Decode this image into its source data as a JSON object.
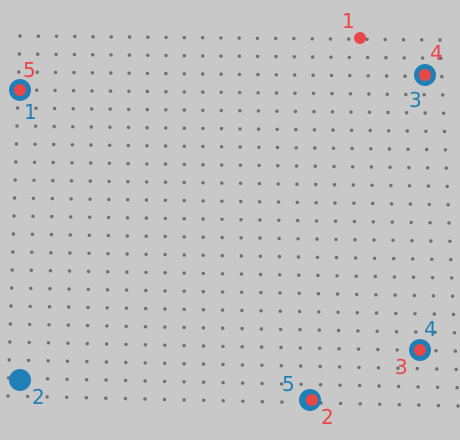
{
  "colors": {
    "background": "#c8c8c8",
    "grid_dot": "#707070",
    "red": "#e84848",
    "blue": "#1f7fb6"
  },
  "red_markers": [
    {
      "label": "1"
    },
    {
      "label": "2"
    },
    {
      "label": "3"
    },
    {
      "label": "4"
    },
    {
      "label": "5"
    }
  ],
  "blue_markers": [
    {
      "label": "1"
    },
    {
      "label": "2"
    },
    {
      "label": "3"
    },
    {
      "label": "4"
    },
    {
      "label": "5"
    }
  ]
}
